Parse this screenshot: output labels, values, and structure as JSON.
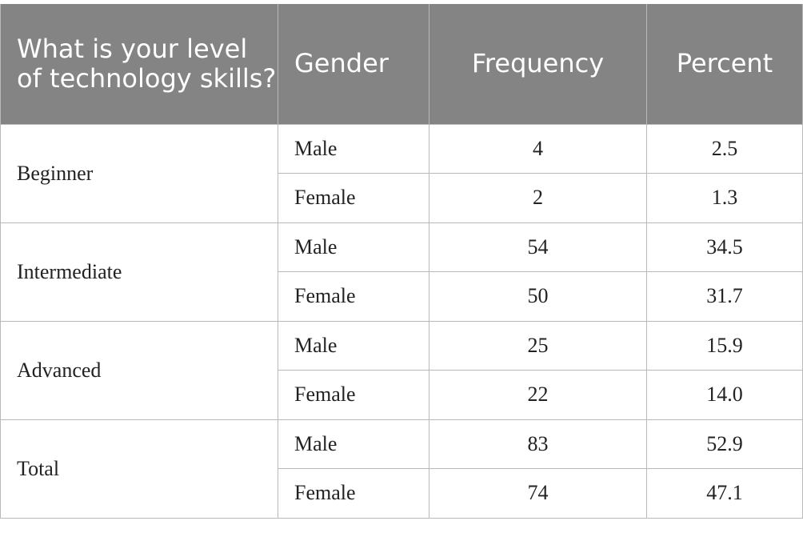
{
  "table": {
    "headers": {
      "level": "What is your level of technology skills?",
      "gender": "Gender",
      "frequency": "Frequency",
      "percent": "Percent"
    },
    "groups": [
      {
        "level": "Beginner",
        "rows": [
          {
            "gender": "Male",
            "frequency": "4",
            "percent": "2.5"
          },
          {
            "gender": "Female",
            "frequency": "2",
            "percent": "1.3"
          }
        ]
      },
      {
        "level": "Intermediate",
        "rows": [
          {
            "gender": "Male",
            "frequency": "54",
            "percent": "34.5"
          },
          {
            "gender": "Female",
            "frequency": "50",
            "percent": "31.7"
          }
        ]
      },
      {
        "level": "Advanced",
        "rows": [
          {
            "gender": "Male",
            "frequency": "25",
            "percent": "15.9"
          },
          {
            "gender": "Female",
            "frequency": "22",
            "percent": "14.0"
          }
        ]
      },
      {
        "level": "Total",
        "rows": [
          {
            "gender": "Male",
            "frequency": "83",
            "percent": "52.9"
          },
          {
            "gender": "Female",
            "frequency": "74",
            "percent": "47.1"
          }
        ]
      }
    ]
  }
}
